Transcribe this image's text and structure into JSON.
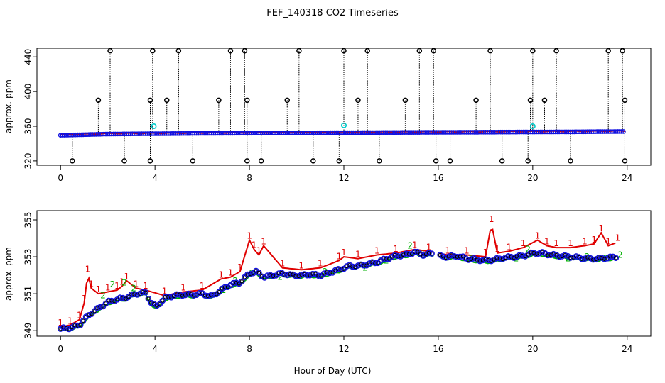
{
  "chart_data": {
    "title": "FEF_140318  CO2 Timeseries",
    "xlabel": "Hour of Day (UTC)",
    "x_ticks": [
      0,
      4,
      8,
      12,
      16,
      20,
      24
    ],
    "xlim": [
      -1,
      25
    ],
    "panels": [
      {
        "type": "scatter",
        "ylabel": "approx. ppm",
        "ylim": [
          315,
          450
        ],
        "y_ticks": [
          320,
          360,
          400,
          440
        ],
        "baseline": [
          349.6,
          351.0,
          351.4,
          351.8,
          352.0,
          352.3,
          352.6,
          352.8,
          353.0,
          353.2,
          353.4,
          353.6,
          354.0
        ],
        "baseline_hours": [
          0,
          2,
          4,
          6,
          8,
          10,
          12,
          14,
          16,
          18,
          20,
          22,
          24
        ],
        "spikes_high": [
          2.1,
          3.9,
          5.0,
          7.2,
          7.8,
          10.1,
          12.0,
          13.0,
          15.2,
          15.8,
          18.2,
          20.0,
          21.0,
          23.2,
          23.8
        ],
        "spikes_mid": [
          1.6,
          3.8,
          4.5,
          6.7,
          7.9,
          9.6,
          12.6,
          14.6,
          17.6,
          19.9,
          20.5,
          23.9
        ],
        "spikes_low": [
          0.5,
          2.7,
          3.8,
          5.6,
          7.9,
          8.5,
          10.7,
          11.8,
          13.5,
          15.9,
          16.5,
          18.7,
          19.8,
          21.6,
          23.9
        ],
        "cyan_points": [
          [
            3.95,
            360
          ],
          [
            12.0,
            361
          ],
          [
            20.0,
            360
          ]
        ]
      },
      {
        "type": "line",
        "ylabel": "approx. ppm",
        "ylim": [
          348.7,
          355.5
        ],
        "y_ticks": [
          349,
          351,
          353,
          355
        ],
        "gap": [
          15.8,
          16.0
        ],
        "series_mean": {
          "x": [
            0,
            0.4,
            0.8,
            1.0,
            1.3,
            1.6,
            2.0,
            2.4,
            2.8,
            3.2,
            3.6,
            3.85,
            4.05,
            4.4,
            4.8,
            5.2,
            5.6,
            6.0,
            6.4,
            6.8,
            7.2,
            7.6,
            8.0,
            8.3,
            8.6,
            9.0,
            9.4,
            9.8,
            10.2,
            10.6,
            11.0,
            11.4,
            11.8,
            12.2,
            12.6,
            13.0,
            13.4,
            13.8,
            14.2,
            14.6,
            15.0,
            15.4,
            15.8,
            16.0,
            16.4,
            16.8,
            17.2,
            17.6,
            18.0,
            18.4,
            18.8,
            19.2,
            19.6,
            20.0,
            20.4,
            20.8,
            21.2,
            21.6,
            22.0,
            22.4,
            22.8,
            23.2,
            23.6
          ],
          "y": [
            349.1,
            349.15,
            349.3,
            349.6,
            349.95,
            350.2,
            350.55,
            350.7,
            350.8,
            351.0,
            351.05,
            350.5,
            350.3,
            350.75,
            350.9,
            350.95,
            350.95,
            351.0,
            350.85,
            351.2,
            351.5,
            351.6,
            352.1,
            352.2,
            351.9,
            352.0,
            352.1,
            352.0,
            352.0,
            352.05,
            352.0,
            352.15,
            352.3,
            352.5,
            352.5,
            352.6,
            352.7,
            352.9,
            353.05,
            353.1,
            353.25,
            353.1,
            353.2,
            353.05,
            353.0,
            353.05,
            352.9,
            352.85,
            352.8,
            352.85,
            352.95,
            353.0,
            353.05,
            353.2,
            353.2,
            353.1,
            353.05,
            353.0,
            352.95,
            352.9,
            352.9,
            352.95,
            353.0
          ]
        },
        "series_max": {
          "x": [
            0,
            0.4,
            0.8,
            1.0,
            1.15,
            1.3,
            1.6,
            2.0,
            2.4,
            2.6,
            2.8,
            3.2,
            3.6,
            4.4,
            5.2,
            6.0,
            6.8,
            7.2,
            7.6,
            8.0,
            8.2,
            8.4,
            8.6,
            9.4,
            10.2,
            11.0,
            11.8,
            12.0,
            12.6,
            13.4,
            14.2,
            15.0,
            15.6,
            16.4,
            17.2,
            18.0,
            18.25,
            18.5,
            19.0,
            19.6,
            20.2,
            20.6,
            21.0,
            21.6,
            22.2,
            22.6,
            22.9,
            23.2,
            23.6
          ],
          "y": [
            349.2,
            349.3,
            349.6,
            350.5,
            352.1,
            351.3,
            351.0,
            351.1,
            351.2,
            351.4,
            351.7,
            351.3,
            351.2,
            350.9,
            351.1,
            351.2,
            351.8,
            351.9,
            352.2,
            353.9,
            353.4,
            353.1,
            353.6,
            352.4,
            352.3,
            352.4,
            352.8,
            353.0,
            352.9,
            353.1,
            353.2,
            353.4,
            353.3,
            353.1,
            353.1,
            353.0,
            354.8,
            353.2,
            353.3,
            353.5,
            353.9,
            353.6,
            353.5,
            353.5,
            353.6,
            353.7,
            354.3,
            353.6,
            353.8
          ]
        },
        "series_green": {
          "x": [
            1.8,
            2.2,
            2.7,
            3.1,
            6.9,
            7.4,
            8.1,
            9.3,
            11.2,
            12.9,
            13.8,
            14.8,
            15.3,
            17.4,
            19.3,
            19.8,
            21.5,
            22.3,
            23.1,
            23.7
          ],
          "y": [
            350.9,
            351.5,
            351.6,
            351.3,
            351.2,
            351.7,
            352.1,
            351.9,
            352.2,
            352.4,
            352.8,
            353.6,
            353.2,
            352.9,
            352.9,
            353.4,
            352.9,
            353.0,
            352.9,
            353.1
          ]
        }
      }
    ]
  }
}
